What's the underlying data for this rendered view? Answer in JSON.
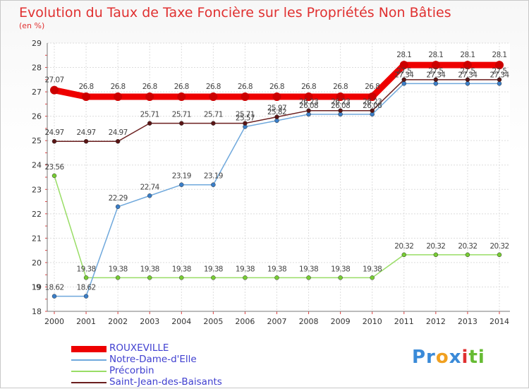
{
  "chart_data": {
    "type": "line",
    "title": "Evolution du Taux de Taxe Foncière sur les Propriétés Non Bâties",
    "ylabel": "(en %)",
    "xlabel": "",
    "ylim": [
      18,
      29
    ],
    "yticks": [
      18,
      19,
      20,
      21,
      22,
      23,
      24,
      25,
      26,
      27,
      28,
      29
    ],
    "categories": [
      "2000",
      "2001",
      "2002",
      "2003",
      "2004",
      "2005",
      "2006",
      "2007",
      "2008",
      "2009",
      "2010",
      "2011",
      "2012",
      "2013",
      "2014"
    ],
    "series": [
      {
        "name": "ROUXEVILLE",
        "color": "#ee0000",
        "values": [
          27.07,
          26.8,
          26.8,
          26.8,
          26.8,
          26.8,
          26.8,
          26.8,
          26.8,
          26.8,
          26.8,
          28.1,
          28.1,
          28.1,
          28.1
        ],
        "labels": [
          "27.07",
          "26.8",
          "26.8",
          "26.8",
          "26.8",
          "26.8",
          "26.8",
          "26.8",
          "26.8",
          "26.8",
          "26.8",
          "28.1",
          "28.1",
          "28.1",
          "28.1"
        ]
      },
      {
        "name": "Notre-Dame-d'Elle",
        "color": "#6fa8dc",
        "values": [
          18.62,
          18.62,
          22.29,
          22.74,
          23.19,
          23.19,
          25.57,
          25.82,
          26.08,
          26.08,
          26.08,
          27.34,
          27.34,
          27.34,
          27.34
        ],
        "labels": [
          "18.62",
          "18.62",
          "22.29",
          "22.74",
          "23.19",
          "23.19",
          "25.57",
          "25.82",
          "26.08",
          "26.08",
          "26.08",
          "27.34",
          "27.34",
          "27.34",
          "27.34"
        ]
      },
      {
        "name": "Précorbin",
        "color": "#99dd66",
        "values": [
          23.56,
          19.38,
          19.38,
          19.38,
          19.38,
          19.38,
          19.38,
          19.38,
          19.38,
          19.38,
          19.38,
          20.32,
          20.32,
          20.32,
          20.32
        ],
        "labels": [
          "23.56",
          "19.38",
          "19.38",
          "19.38",
          "19.38",
          "19.38",
          "19.38",
          "19.38",
          "19.38",
          "19.38",
          "19.38",
          "20.32",
          "20.32",
          "20.32",
          "20.32"
        ]
      },
      {
        "name": "Saint-Jean-des-Baisants",
        "color": "#6b1f1f",
        "values": [
          24.97,
          24.97,
          24.97,
          25.71,
          25.71,
          25.71,
          25.71,
          25.97,
          26.23,
          26.23,
          26.23,
          27.5,
          27.5,
          27.5,
          27.5
        ],
        "labels": [
          "24.97",
          "24.97",
          "24.97",
          "25.71",
          "25.71",
          "25.71",
          "25.71",
          "25.97",
          "26.23",
          "26.23",
          "26.23",
          "27.5",
          "27.5",
          "27.5",
          "27.5"
        ]
      }
    ],
    "legend_position": "bottom-left",
    "grid": true
  },
  "extra_labels": [
    "19"
  ],
  "logo": {
    "parts": [
      "Pr",
      "o",
      "x",
      "i",
      "ti"
    ]
  }
}
